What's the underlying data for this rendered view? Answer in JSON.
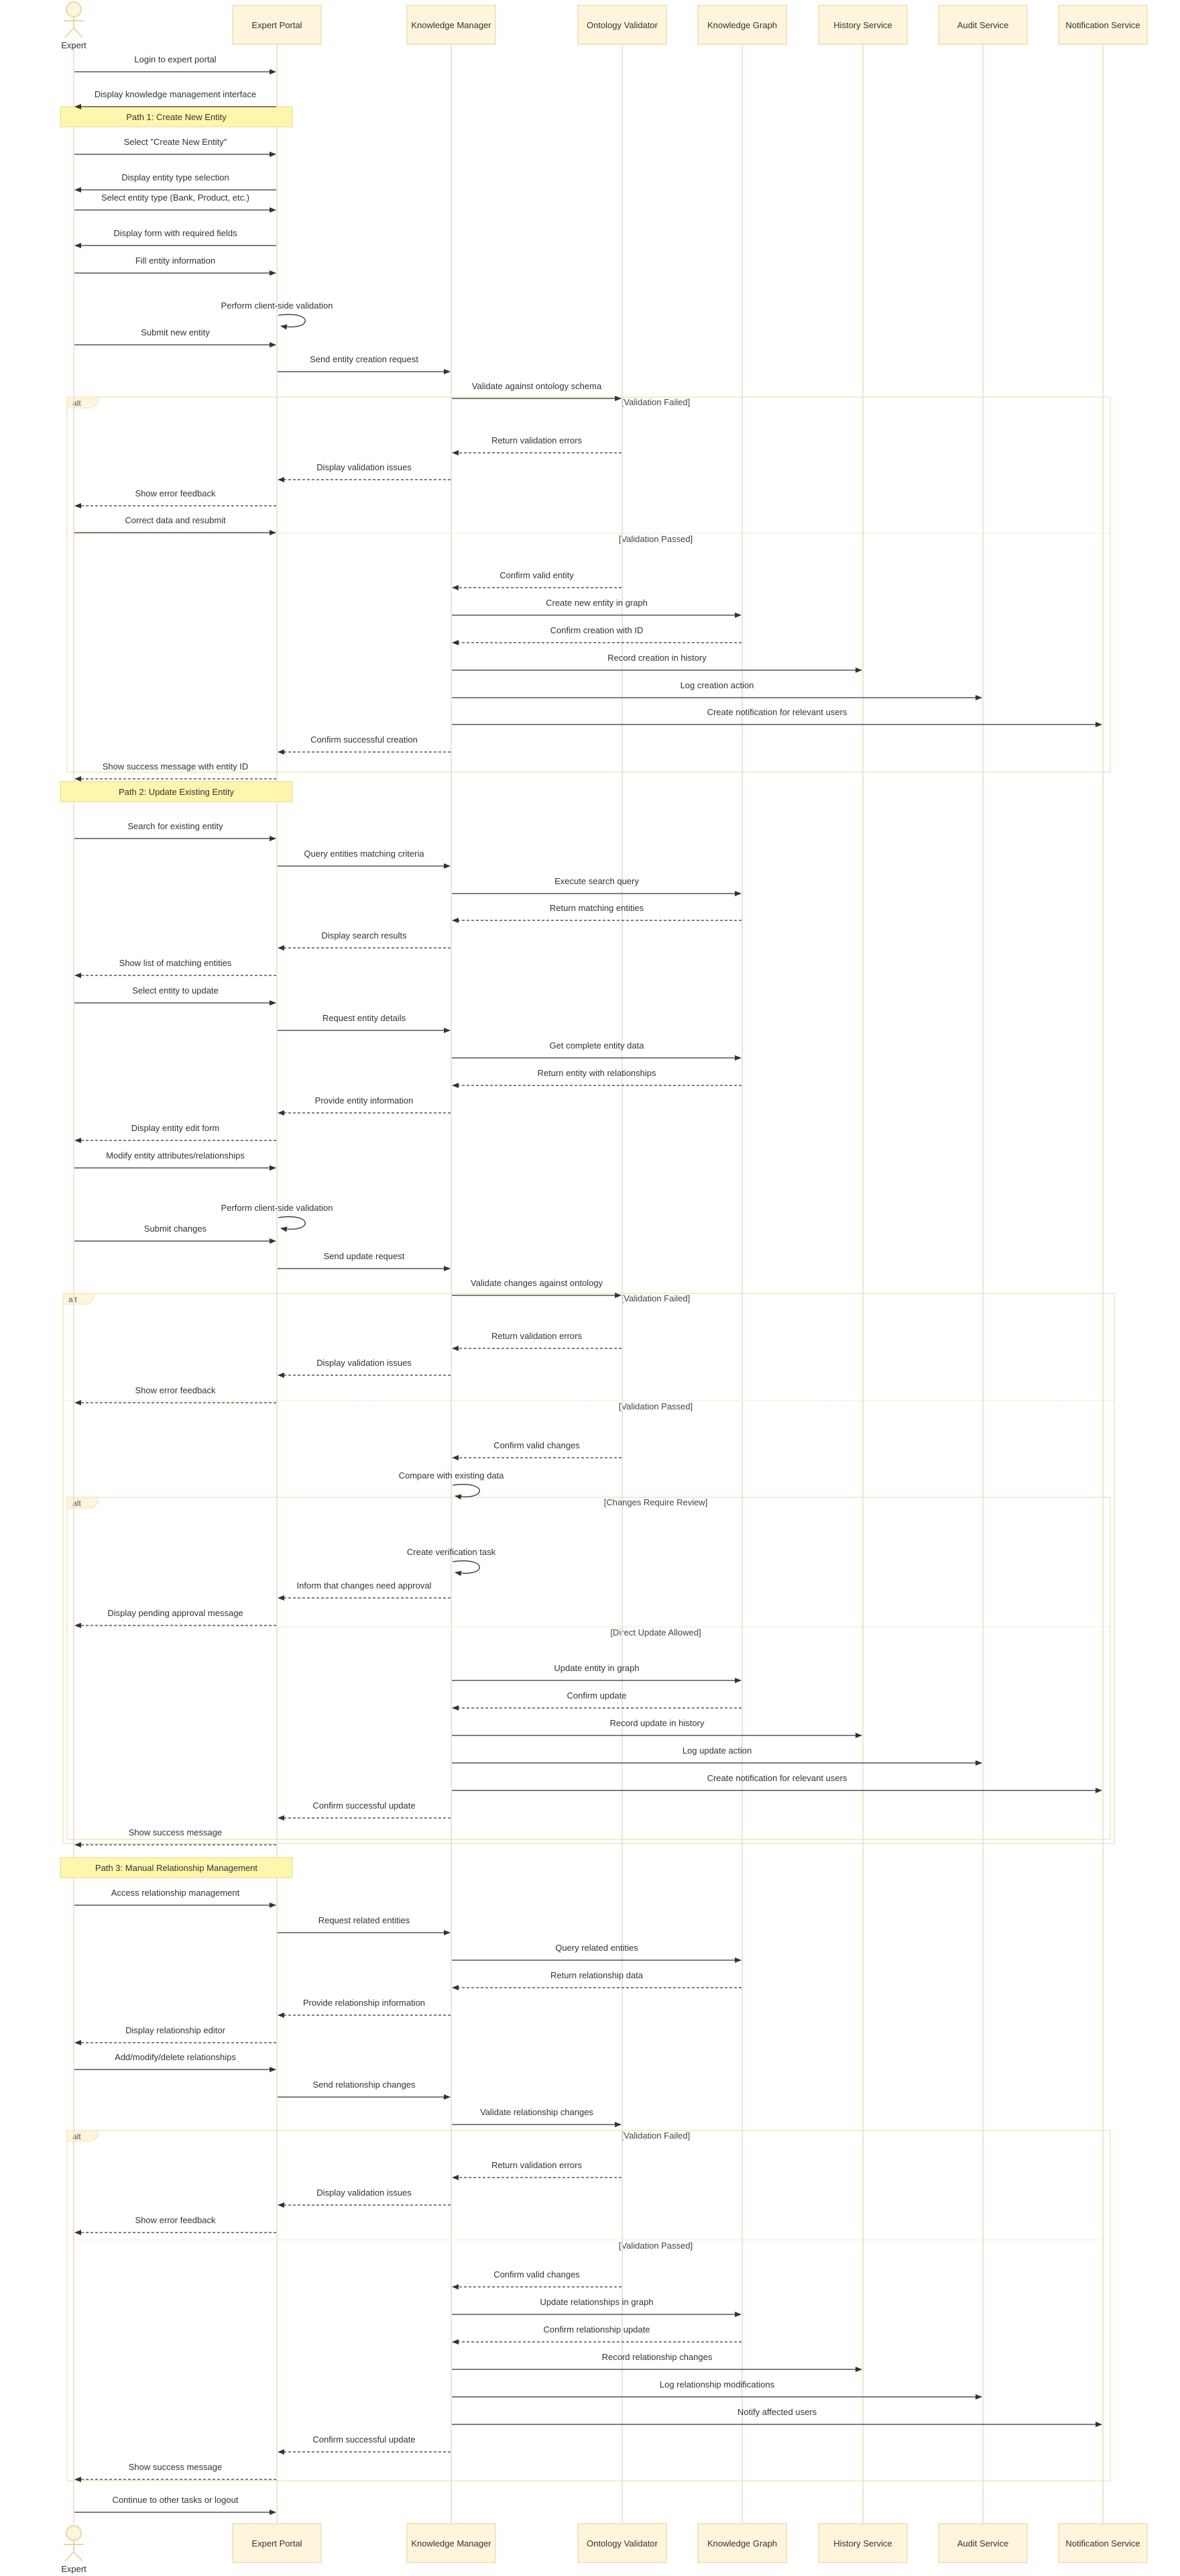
{
  "participants": [
    {
      "id": "expert",
      "label": "Expert",
      "kind": "actor"
    },
    {
      "id": "portal",
      "label": "Expert Portal",
      "kind": "box"
    },
    {
      "id": "km",
      "label": "Knowledge Manager",
      "kind": "box"
    },
    {
      "id": "ov",
      "label": "Ontology Validator",
      "kind": "box"
    },
    {
      "id": "kg",
      "label": "Knowledge Graph",
      "kind": "box"
    },
    {
      "id": "hs",
      "label": "History Service",
      "kind": "box"
    },
    {
      "id": "as",
      "label": "Audit Service",
      "kind": "box"
    },
    {
      "id": "ns",
      "label": "Notification Service",
      "kind": "box"
    }
  ],
  "notes": [
    {
      "id": "note-path1",
      "text": "Path 1: Create New Entity"
    },
    {
      "id": "note-path2",
      "text": "Path 2: Update Existing Entity"
    },
    {
      "id": "note-path3",
      "text": "Path 3: Manual Relationship Management"
    }
  ],
  "frames": [
    {
      "id": "alt1",
      "keyword": "alt",
      "sections": [
        "[Validation Failed]",
        "[Validation Passed]"
      ]
    },
    {
      "id": "alt2",
      "keyword": "alt",
      "sections": [
        "[Validation Failed]",
        "[Validation Passed]"
      ]
    },
    {
      "id": "alt3",
      "keyword": "alt",
      "sections": [
        "[Changes Require Review]",
        "[Direct Update Allowed]"
      ]
    },
    {
      "id": "alt4",
      "keyword": "alt",
      "sections": [
        "[Validation Failed]",
        "[Validation Passed]"
      ]
    }
  ],
  "messages": [
    {
      "from": "expert",
      "to": "portal",
      "text": "Login to expert portal",
      "style": "solid"
    },
    {
      "from": "portal",
      "to": "expert",
      "text": "Display knowledge management interface",
      "style": "solid"
    },
    {
      "from": "expert",
      "to": "portal",
      "text": "Select \"Create New Entity\"",
      "style": "solid"
    },
    {
      "from": "portal",
      "to": "expert",
      "text": "Display entity type selection",
      "style": "solid"
    },
    {
      "from": "expert",
      "to": "portal",
      "text": "Select entity type (Bank, Product, etc.)",
      "style": "solid"
    },
    {
      "from": "portal",
      "to": "expert",
      "text": "Display form with required fields",
      "style": "solid"
    },
    {
      "from": "expert",
      "to": "portal",
      "text": "Fill entity information",
      "style": "solid"
    },
    {
      "from": "portal",
      "to": "portal",
      "text": "Perform client-side validation",
      "style": "solid"
    },
    {
      "from": "expert",
      "to": "portal",
      "text": "Submit new entity",
      "style": "solid"
    },
    {
      "from": "portal",
      "to": "km",
      "text": "Send entity creation request",
      "style": "solid"
    },
    {
      "from": "km",
      "to": "ov",
      "text": "Validate against ontology schema",
      "style": "solid"
    },
    {
      "from": "ov",
      "to": "km",
      "text": "Return validation errors",
      "style": "dashed"
    },
    {
      "from": "km",
      "to": "portal",
      "text": "Display validation issues",
      "style": "dashed"
    },
    {
      "from": "portal",
      "to": "expert",
      "text": "Show error feedback",
      "style": "dashed"
    },
    {
      "from": "expert",
      "to": "portal",
      "text": "Correct data and resubmit",
      "style": "solid"
    },
    {
      "from": "ov",
      "to": "km",
      "text": "Confirm valid entity",
      "style": "dashed"
    },
    {
      "from": "km",
      "to": "kg",
      "text": "Create new entity in graph",
      "style": "solid"
    },
    {
      "from": "kg",
      "to": "km",
      "text": "Confirm creation with ID",
      "style": "dashed"
    },
    {
      "from": "km",
      "to": "hs",
      "text": "Record creation in history",
      "style": "solid"
    },
    {
      "from": "km",
      "to": "as",
      "text": "Log creation action",
      "style": "solid"
    },
    {
      "from": "km",
      "to": "ns",
      "text": "Create notification for relevant users",
      "style": "solid"
    },
    {
      "from": "km",
      "to": "portal",
      "text": "Confirm successful creation",
      "style": "dashed"
    },
    {
      "from": "portal",
      "to": "expert",
      "text": "Show success message with entity ID",
      "style": "dashed"
    },
    {
      "from": "expert",
      "to": "portal",
      "text": "Search for existing entity",
      "style": "solid"
    },
    {
      "from": "portal",
      "to": "km",
      "text": "Query entities matching criteria",
      "style": "solid"
    },
    {
      "from": "km",
      "to": "kg",
      "text": "Execute search query",
      "style": "solid"
    },
    {
      "from": "kg",
      "to": "km",
      "text": "Return matching entities",
      "style": "dashed"
    },
    {
      "from": "km",
      "to": "portal",
      "text": "Display search results",
      "style": "dashed"
    },
    {
      "from": "portal",
      "to": "expert",
      "text": "Show list of matching entities",
      "style": "dashed"
    },
    {
      "from": "expert",
      "to": "portal",
      "text": "Select entity to update",
      "style": "solid"
    },
    {
      "from": "portal",
      "to": "km",
      "text": "Request entity details",
      "style": "solid"
    },
    {
      "from": "km",
      "to": "kg",
      "text": "Get complete entity data",
      "style": "solid"
    },
    {
      "from": "kg",
      "to": "km",
      "text": "Return entity with relationships",
      "style": "dashed"
    },
    {
      "from": "km",
      "to": "portal",
      "text": "Provide entity information",
      "style": "dashed"
    },
    {
      "from": "portal",
      "to": "expert",
      "text": "Display entity edit form",
      "style": "dashed"
    },
    {
      "from": "expert",
      "to": "portal",
      "text": "Modify entity attributes/relationships",
      "style": "solid"
    },
    {
      "from": "portal",
      "to": "portal",
      "text": "Perform client-side validation",
      "style": "solid"
    },
    {
      "from": "expert",
      "to": "portal",
      "text": "Submit changes",
      "style": "solid"
    },
    {
      "from": "portal",
      "to": "km",
      "text": "Send update request",
      "style": "solid"
    },
    {
      "from": "km",
      "to": "ov",
      "text": "Validate changes against ontology",
      "style": "solid"
    },
    {
      "from": "ov",
      "to": "km",
      "text": "Return validation errors",
      "style": "dashed"
    },
    {
      "from": "km",
      "to": "portal",
      "text": "Display validation issues",
      "style": "dashed"
    },
    {
      "from": "portal",
      "to": "expert",
      "text": "Show error feedback",
      "style": "dashed"
    },
    {
      "from": "ov",
      "to": "km",
      "text": "Confirm valid changes",
      "style": "dashed"
    },
    {
      "from": "km",
      "to": "km",
      "text": "Compare with existing data",
      "style": "solid"
    },
    {
      "from": "km",
      "to": "km",
      "text": "Create verification task",
      "style": "solid"
    },
    {
      "from": "km",
      "to": "portal",
      "text": "Inform that changes need approval",
      "style": "dashed"
    },
    {
      "from": "portal",
      "to": "expert",
      "text": "Display pending approval message",
      "style": "dashed"
    },
    {
      "from": "km",
      "to": "kg",
      "text": "Update entity in graph",
      "style": "solid"
    },
    {
      "from": "kg",
      "to": "km",
      "text": "Confirm update",
      "style": "dashed"
    },
    {
      "from": "km",
      "to": "hs",
      "text": "Record update in history",
      "style": "solid"
    },
    {
      "from": "km",
      "to": "as",
      "text": "Log update action",
      "style": "solid"
    },
    {
      "from": "km",
      "to": "ns",
      "text": "Create notification for relevant users",
      "style": "solid"
    },
    {
      "from": "km",
      "to": "portal",
      "text": "Confirm successful update",
      "style": "dashed"
    },
    {
      "from": "portal",
      "to": "expert",
      "text": "Show success message",
      "style": "dashed"
    },
    {
      "from": "expert",
      "to": "portal",
      "text": "Access relationship management",
      "style": "solid"
    },
    {
      "from": "portal",
      "to": "km",
      "text": "Request related entities",
      "style": "solid"
    },
    {
      "from": "km",
      "to": "kg",
      "text": "Query related entities",
      "style": "solid"
    },
    {
      "from": "kg",
      "to": "km",
      "text": "Return relationship data",
      "style": "dashed"
    },
    {
      "from": "km",
      "to": "portal",
      "text": "Provide relationship information",
      "style": "dashed"
    },
    {
      "from": "portal",
      "to": "expert",
      "text": "Display relationship editor",
      "style": "dashed"
    },
    {
      "from": "expert",
      "to": "portal",
      "text": "Add/modify/delete relationships",
      "style": "solid"
    },
    {
      "from": "portal",
      "to": "km",
      "text": "Send relationship changes",
      "style": "solid"
    },
    {
      "from": "km",
      "to": "ov",
      "text": "Validate relationship changes",
      "style": "solid"
    },
    {
      "from": "ov",
      "to": "km",
      "text": "Return validation errors",
      "style": "dashed"
    },
    {
      "from": "km",
      "to": "portal",
      "text": "Display validation issues",
      "style": "dashed"
    },
    {
      "from": "portal",
      "to": "expert",
      "text": "Show error feedback",
      "style": "dashed"
    },
    {
      "from": "ov",
      "to": "km",
      "text": "Confirm valid changes",
      "style": "dashed"
    },
    {
      "from": "km",
      "to": "kg",
      "text": "Update relationships in graph",
      "style": "solid"
    },
    {
      "from": "kg",
      "to": "km",
      "text": "Confirm relationship update",
      "style": "dashed"
    },
    {
      "from": "km",
      "to": "hs",
      "text": "Record relationship changes",
      "style": "solid"
    },
    {
      "from": "km",
      "to": "as",
      "text": "Log relationship modifications",
      "style": "solid"
    },
    {
      "from": "km",
      "to": "ns",
      "text": "Notify affected users",
      "style": "solid"
    },
    {
      "from": "km",
      "to": "portal",
      "text": "Confirm successful update",
      "style": "dashed"
    },
    {
      "from": "portal",
      "to": "expert",
      "text": "Show success message",
      "style": "dashed"
    },
    {
      "from": "expert",
      "to": "portal",
      "text": "Continue to other tasks or logout",
      "style": "solid"
    }
  ]
}
